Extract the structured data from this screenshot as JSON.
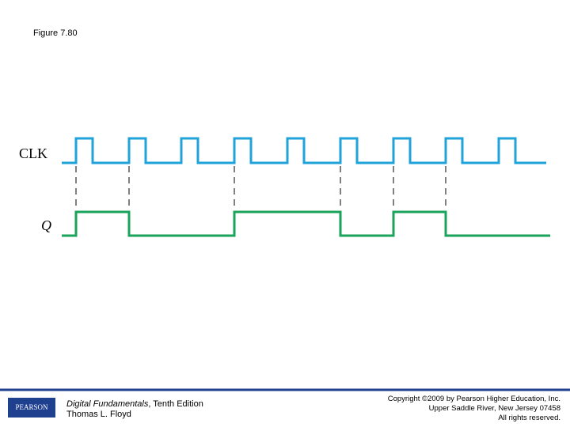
{
  "header": {
    "title": "Figure 7.80"
  },
  "diagram": {
    "signals": [
      {
        "label": "CLK"
      },
      {
        "label": "Q"
      }
    ]
  },
  "footer": {
    "logo": "PEARSON",
    "book_title": "Digital Fundamentals",
    "edition": ", Tenth Edition",
    "author": "Thomas L. Floyd",
    "copyright": [
      "Copyright ©2009 by Pearson Higher Education, Inc.",
      "Upper Saddle River, New Jersey 07458",
      "All rights reserved."
    ]
  }
}
